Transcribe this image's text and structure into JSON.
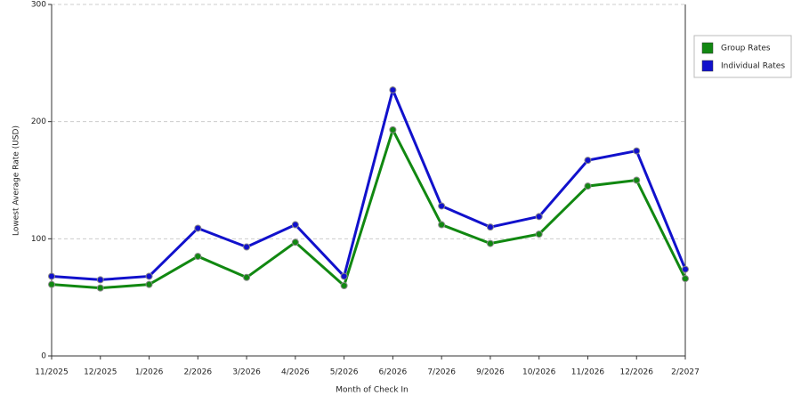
{
  "chart_data": {
    "type": "line",
    "x_label": "Month of Check In",
    "y_label": "Lowest Average Rate (USD)",
    "categories": [
      "11/2025",
      "12/2025",
      "1/2026",
      "2/2026",
      "3/2026",
      "4/2026",
      "5/2026",
      "6/2026",
      "7/2026",
      "9/2026",
      "10/2026",
      "11/2026",
      "12/2026",
      "2/2027"
    ],
    "series": [
      {
        "name": "Group Rates",
        "color": "#118811",
        "values": [
          61,
          58,
          61,
          85,
          67,
          97,
          60,
          193,
          112,
          96,
          104,
          145,
          150,
          66
        ]
      },
      {
        "name": "Individual Rates",
        "color": "#1111cc",
        "values": [
          68,
          65,
          68,
          109,
          93,
          112,
          68,
          227,
          128,
          110,
          119,
          167,
          175,
          74
        ]
      }
    ],
    "ylim": [
      0,
      300
    ],
    "yticks": [
      0,
      100,
      200,
      300
    ],
    "grid": true,
    "legend": "right"
  }
}
